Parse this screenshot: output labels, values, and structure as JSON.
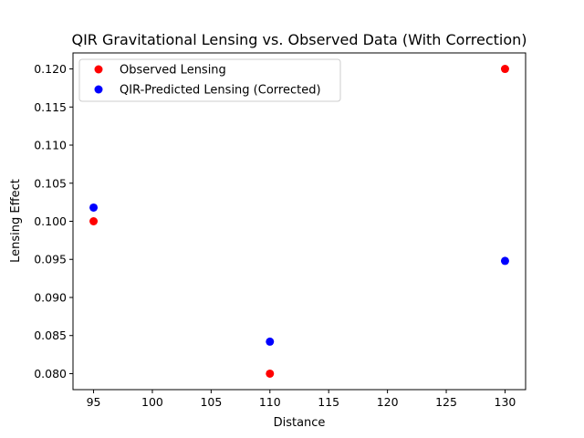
{
  "chart_data": {
    "type": "scatter",
    "title": "QIR Gravitational Lensing vs. Observed Data (With Correction)",
    "xlabel": "Distance",
    "ylabel": "Lensing Effect",
    "xlim": [
      93.25,
      131.75
    ],
    "ylim": [
      0.0779,
      0.1221
    ],
    "xticks": [
      95,
      100,
      105,
      110,
      115,
      120,
      125,
      130
    ],
    "yticks": [
      0.08,
      0.085,
      0.09,
      0.095,
      0.1,
      0.105,
      0.11,
      0.115,
      0.12
    ],
    "xtick_labels": [
      "95",
      "100",
      "105",
      "110",
      "115",
      "120",
      "125",
      "130"
    ],
    "ytick_labels": [
      "0.080",
      "0.085",
      "0.090",
      "0.095",
      "0.100",
      "0.105",
      "0.110",
      "0.115",
      "0.120"
    ],
    "grid": false,
    "legend_position": "top-left",
    "series": [
      {
        "name": "Observed Lensing",
        "color": "#ff0000",
        "x": [
          95,
          110,
          130
        ],
        "y": [
          0.1,
          0.08,
          0.12
        ]
      },
      {
        "name": "QIR-Predicted Lensing (Corrected)",
        "color": "#0000ff",
        "x": [
          95,
          110,
          130
        ],
        "y": [
          0.1018,
          0.0842,
          0.0948
        ]
      }
    ]
  }
}
